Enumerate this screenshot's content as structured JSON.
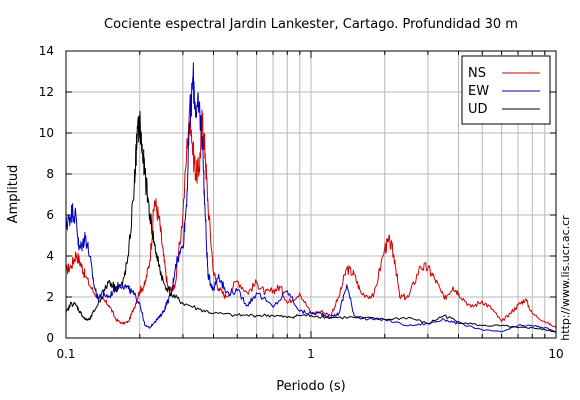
{
  "chart_data": {
    "type": "line",
    "title": "Cociente espectral Jardin Lankester, Cartago. Profundidad 30 m",
    "xlabel": "Periodo (s)",
    "ylabel": "Amplitud",
    "xscale": "log",
    "xlim": [
      0.1,
      10
    ],
    "ylim": [
      0,
      14
    ],
    "grid": true,
    "legend_position": "top-right",
    "xticks": [
      0.1,
      1,
      10
    ],
    "xtick_labels": [
      "0.1",
      "1",
      "10"
    ],
    "yticks": [
      0,
      2,
      4,
      6,
      8,
      10,
      12,
      14
    ],
    "ytick_labels": [
      "0",
      "2",
      "4",
      "6",
      "8",
      "10",
      "12",
      "14"
    ],
    "annotation": "http://www.lis.ucr.ac.cr",
    "series": [
      {
        "name": "NS",
        "color": "#d40000",
        "x": [
          0.1,
          0.105,
          0.11,
          0.115,
          0.12,
          0.13,
          0.14,
          0.15,
          0.16,
          0.17,
          0.18,
          0.19,
          0.2,
          0.21,
          0.22,
          0.23,
          0.24,
          0.25,
          0.26,
          0.27,
          0.28,
          0.3,
          0.32,
          0.33,
          0.34,
          0.35,
          0.36,
          0.37,
          0.38,
          0.4,
          0.42,
          0.45,
          0.5,
          0.55,
          0.6,
          0.65,
          0.7,
          0.75,
          0.8,
          0.9,
          1.0,
          1.1,
          1.2,
          1.3,
          1.4,
          1.5,
          1.6,
          1.8,
          2.0,
          2.1,
          2.2,
          2.3,
          2.5,
          2.8,
          3.0,
          3.2,
          3.5,
          3.8,
          4.0,
          4.5,
          5.0,
          5.5,
          6.0,
          6.5,
          7.0,
          7.5,
          8.0,
          9.0,
          10.0
        ],
        "y": [
          3.3,
          3.5,
          4.1,
          3.6,
          3.0,
          2.2,
          1.9,
          1.6,
          0.9,
          0.7,
          0.8,
          1.5,
          2.3,
          2.6,
          3.8,
          6.7,
          5.8,
          4.0,
          2.5,
          2.3,
          2.7,
          6.0,
          11.5,
          9.0,
          8.0,
          8.3,
          10.7,
          9.0,
          6.5,
          3.2,
          2.4,
          2.0,
          2.8,
          2.2,
          2.7,
          2.2,
          2.3,
          2.5,
          1.7,
          2.2,
          1.2,
          1.3,
          1.1,
          2.0,
          3.4,
          3.1,
          2.2,
          2.0,
          4.4,
          4.7,
          3.8,
          2.0,
          2.0,
          3.5,
          3.4,
          2.9,
          1.9,
          2.5,
          2.2,
          1.5,
          1.8,
          1.4,
          0.8,
          1.2,
          1.6,
          1.9,
          1.2,
          0.8,
          0.5
        ]
      },
      {
        "name": "EW",
        "color": "#0000c0",
        "x": [
          0.1,
          0.103,
          0.106,
          0.11,
          0.113,
          0.117,
          0.12,
          0.125,
          0.13,
          0.135,
          0.14,
          0.15,
          0.16,
          0.17,
          0.18,
          0.19,
          0.2,
          0.21,
          0.22,
          0.23,
          0.24,
          0.25,
          0.26,
          0.27,
          0.28,
          0.3,
          0.31,
          0.32,
          0.33,
          0.34,
          0.35,
          0.36,
          0.37,
          0.38,
          0.4,
          0.42,
          0.45,
          0.5,
          0.55,
          0.6,
          0.7,
          0.8,
          0.9,
          1.0,
          1.1,
          1.2,
          1.3,
          1.4,
          1.5,
          1.7,
          2.0,
          2.5,
          3.0,
          3.5,
          4.0,
          5.0,
          6.0,
          7.0,
          8.0,
          9.0,
          10.0
        ],
        "y": [
          5.5,
          5.8,
          6.2,
          5.9,
          4.3,
          4.6,
          5.0,
          4.0,
          2.6,
          1.9,
          2.2,
          2.0,
          2.5,
          2.6,
          2.4,
          2.1,
          1.7,
          0.6,
          0.5,
          0.8,
          1.0,
          1.3,
          1.8,
          2.2,
          3.6,
          4.5,
          6.5,
          10.5,
          12.7,
          11.0,
          11.2,
          9.8,
          6.0,
          3.0,
          2.4,
          3.1,
          2.2,
          2.3,
          1.6,
          2.2,
          1.5,
          2.3,
          1.3,
          1.2,
          1.2,
          1.0,
          1.2,
          2.6,
          1.1,
          0.9,
          0.9,
          0.6,
          0.7,
          0.9,
          0.7,
          0.4,
          0.3,
          0.6,
          0.6,
          0.5,
          0.3
        ]
      },
      {
        "name": "UD",
        "color": "#000000",
        "x": [
          0.1,
          0.105,
          0.11,
          0.115,
          0.12,
          0.125,
          0.13,
          0.14,
          0.15,
          0.16,
          0.17,
          0.18,
          0.19,
          0.195,
          0.2,
          0.205,
          0.21,
          0.22,
          0.23,
          0.24,
          0.25,
          0.27,
          0.3,
          0.35,
          0.4,
          0.5,
          0.6,
          0.7,
          0.8,
          0.9,
          1.0,
          1.2,
          1.5,
          2.0,
          2.5,
          3.0,
          3.5,
          4.0,
          5.0,
          6.0,
          7.0,
          8.0,
          9.0,
          10.0
        ],
        "y": [
          1.2,
          1.7,
          1.6,
          1.2,
          0.9,
          0.9,
          1.3,
          2.0,
          2.8,
          2.4,
          2.6,
          4.0,
          7.5,
          9.8,
          10.5,
          9.0,
          8.0,
          6.0,
          4.5,
          3.5,
          2.7,
          2.1,
          1.7,
          1.4,
          1.2,
          1.1,
          1.1,
          1.1,
          1.0,
          1.1,
          1.1,
          1.0,
          1.0,
          0.9,
          1.0,
          0.7,
          1.1,
          0.8,
          0.6,
          0.6,
          0.5,
          0.5,
          0.4,
          0.3
        ]
      }
    ]
  }
}
